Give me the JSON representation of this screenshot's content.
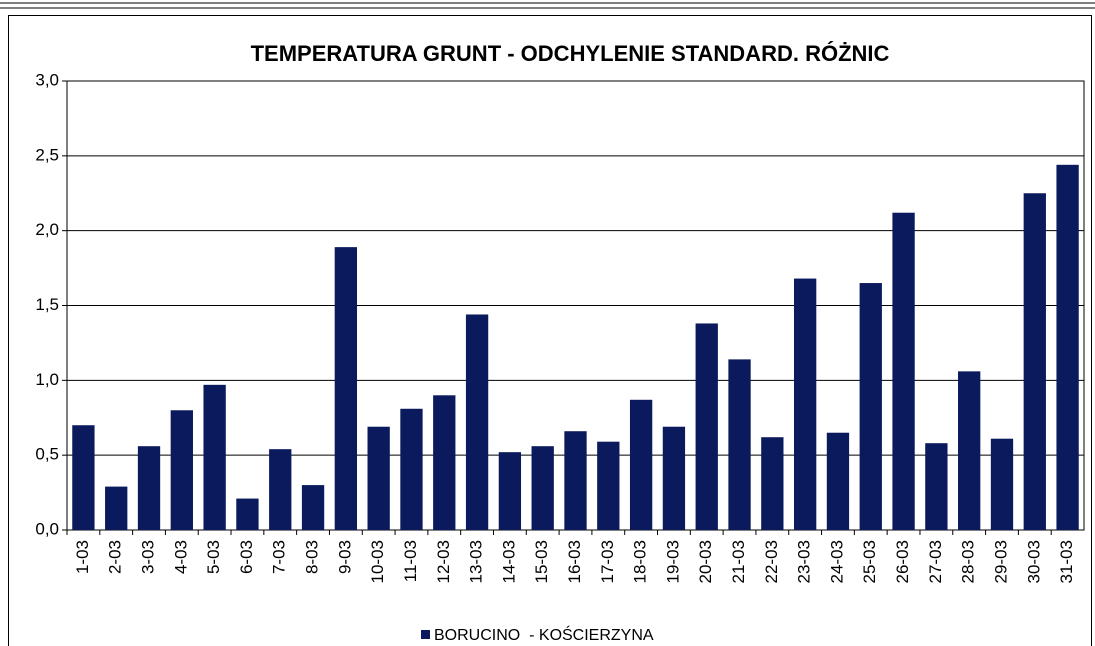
{
  "chart_data": {
    "type": "bar",
    "title": "TEMPERATURA GRUNT - ODCHYLENIE STANDARD. RÓŻNIC",
    "categories": [
      "1-03",
      "2-03",
      "3-03",
      "4-03",
      "5-03",
      "6-03",
      "7-03",
      "8-03",
      "9-03",
      "10-03",
      "11-03",
      "12-03",
      "13-03",
      "14-03",
      "15-03",
      "16-03",
      "17-03",
      "18-03",
      "19-03",
      "20-03",
      "21-03",
      "22-03",
      "23-03",
      "24-03",
      "25-03",
      "26-03",
      "27-03",
      "28-03",
      "29-03",
      "30-03",
      "31-03"
    ],
    "series": [
      {
        "name": "BORUCINO  - KOŚCIERZYNA",
        "color": "#0b1a5c",
        "values": [
          0.7,
          0.29,
          0.56,
          0.8,
          0.97,
          0.21,
          0.54,
          0.3,
          1.89,
          0.69,
          0.81,
          0.9,
          1.44,
          0.52,
          0.56,
          0.66,
          0.59,
          0.87,
          0.69,
          1.38,
          1.14,
          0.62,
          1.68,
          0.65,
          1.65,
          2.12,
          0.58,
          1.06,
          0.61,
          2.25,
          2.44
        ]
      }
    ],
    "ylim": [
      0,
      3
    ],
    "yticks": [
      {
        "value": 0,
        "label": "0,0"
      },
      {
        "value": 0.5,
        "label": "0,5"
      },
      {
        "value": 1,
        "label": "1,0"
      },
      {
        "value": 1.5,
        "label": "1,5"
      },
      {
        "value": 2,
        "label": "2,0"
      },
      {
        "value": 2.5,
        "label": "2,5"
      },
      {
        "value": 3,
        "label": "3,0"
      }
    ],
    "grid": true,
    "legend": "bottom"
  }
}
